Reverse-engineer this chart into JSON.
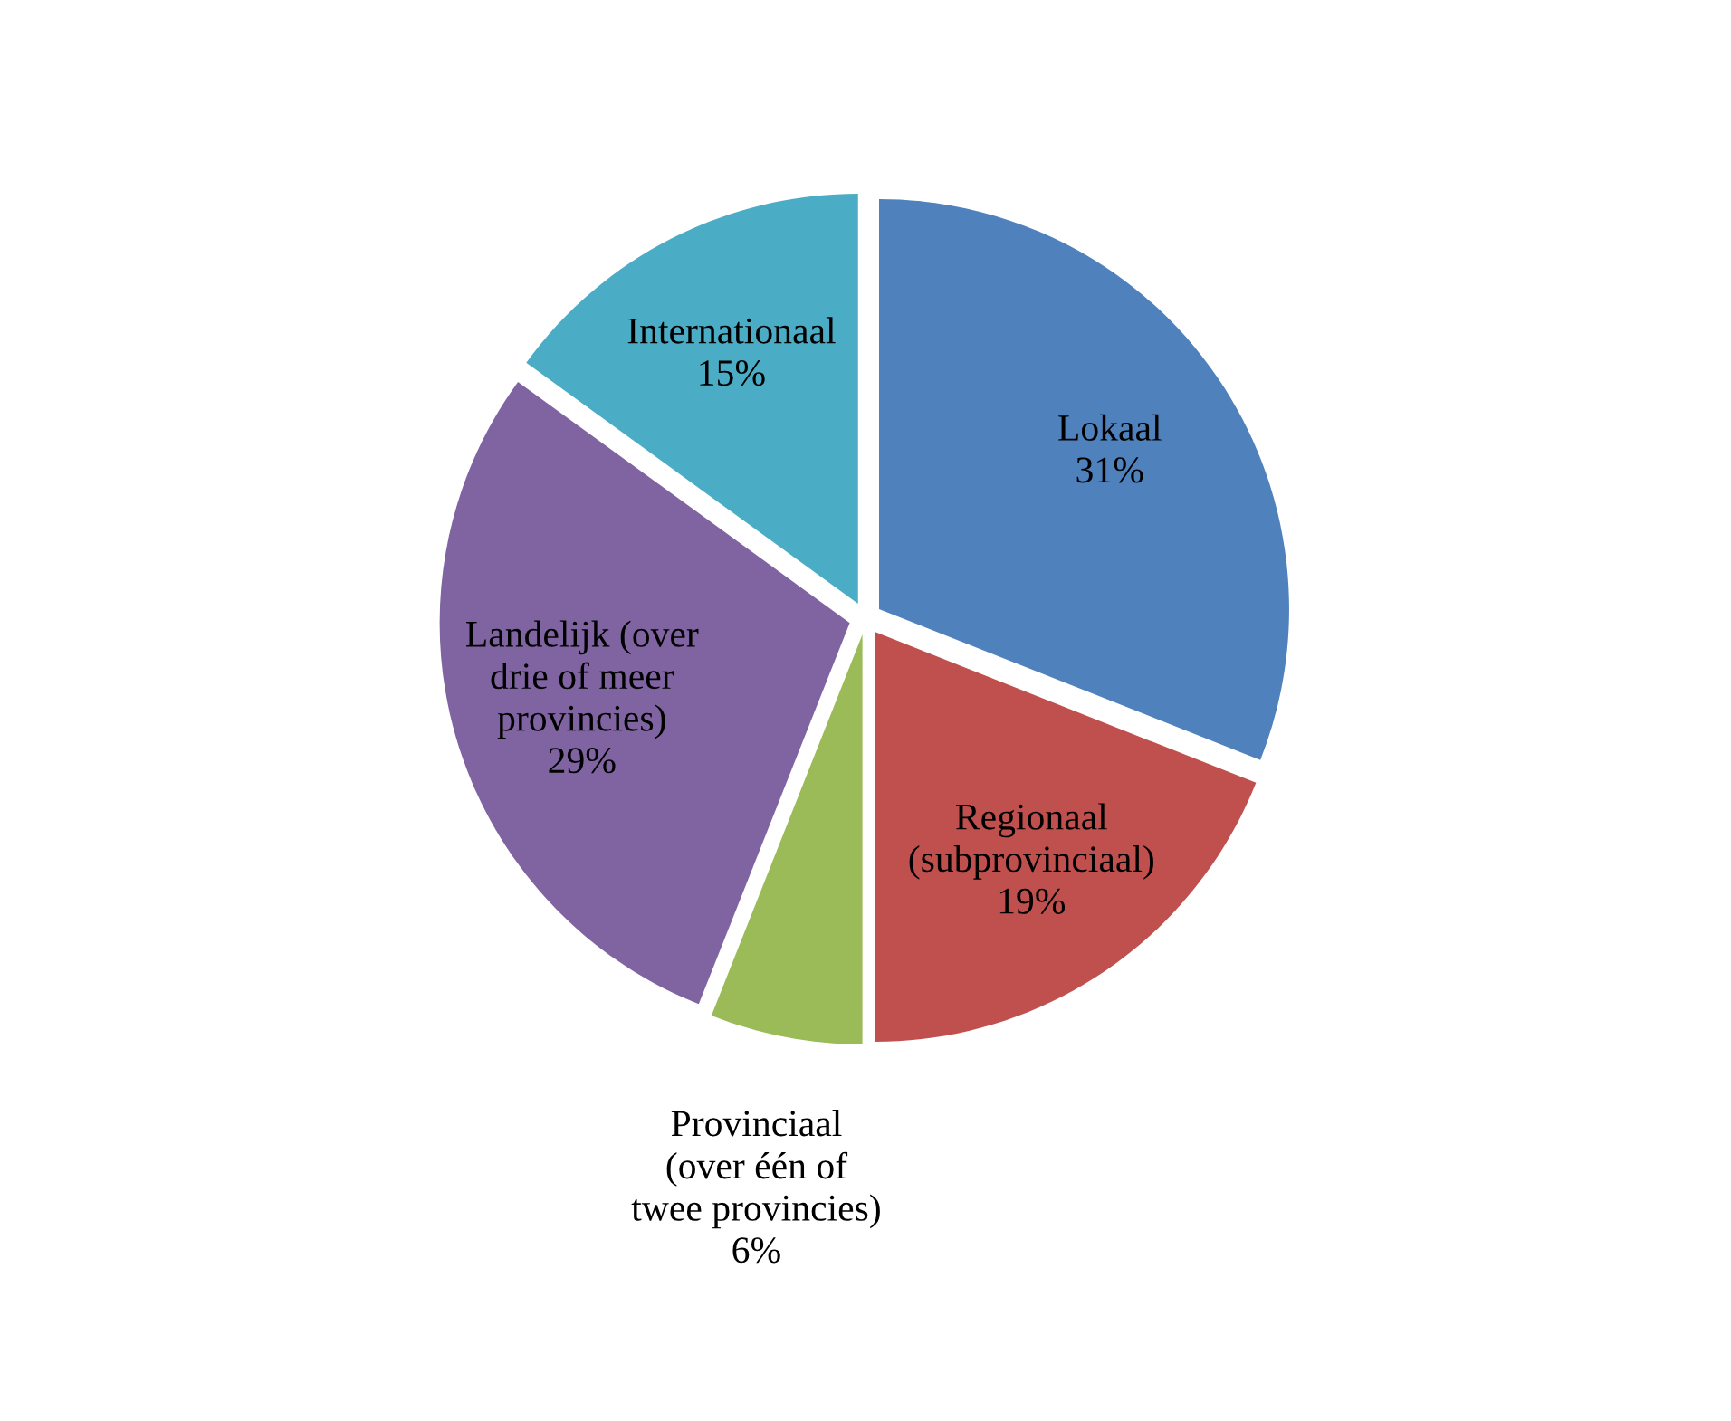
{
  "chart_data": {
    "type": "pie",
    "categories": [
      "Lokaal",
      "Regionaal\n(subprovinciaal)",
      "Provinciaal\n(over één of\ntwee provincies)",
      "Landelijk (over\ndrie of meer\nprovincies)",
      "Internationaal"
    ],
    "values": [
      31,
      19,
      6,
      29,
      15
    ],
    "value_labels": [
      "31%",
      "19%",
      "6%",
      "29%",
      "15%"
    ],
    "colors": [
      "#4f81bd",
      "#c0504d",
      "#9bbb59",
      "#8064a2",
      "#4bacc6"
    ],
    "legend": false
  }
}
